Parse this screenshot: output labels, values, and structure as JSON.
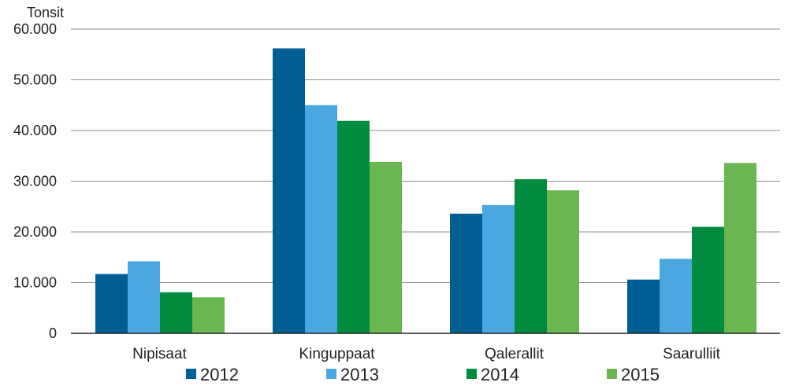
{
  "chart_data": {
    "type": "bar",
    "ylabel": "Tonsit",
    "categories": [
      "Nipisaat",
      "Kinguppaat",
      "Qalerallit",
      "Saarulliit"
    ],
    "ylim": [
      0,
      60000
    ],
    "yticks": [
      0,
      10000,
      20000,
      30000,
      40000,
      50000,
      60000
    ],
    "ytick_labels": [
      "0",
      "10.000",
      "20.000",
      "30.000",
      "40.000",
      "50.000",
      "60.000"
    ],
    "grid": true,
    "legend_position": "bottom",
    "series": [
      {
        "name": "2012",
        "color": "#005f92",
        "values": [
          11700,
          56200,
          23600,
          10600
        ]
      },
      {
        "name": "2013",
        "color": "#4aa7e0",
        "values": [
          14200,
          45000,
          25300,
          14700
        ]
      },
      {
        "name": "2014",
        "color": "#008b3e",
        "values": [
          8100,
          41900,
          30400,
          21000
        ]
      },
      {
        "name": "2015",
        "color": "#6ab650",
        "values": [
          7100,
          33800,
          28200,
          33600
        ]
      }
    ]
  }
}
